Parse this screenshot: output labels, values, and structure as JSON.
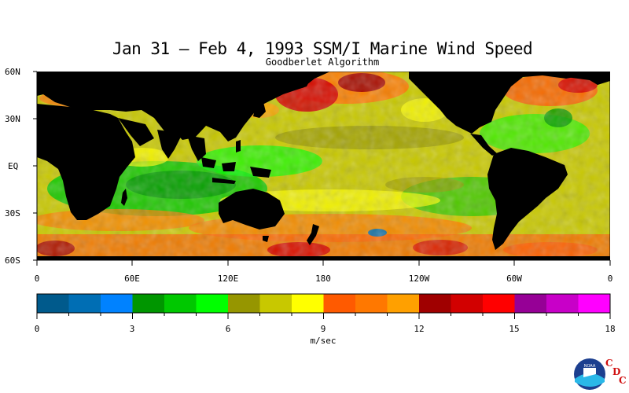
{
  "title": "Jan 31 – Feb 4, 1993 SSM/I Marine Wind Speed",
  "subtitle": "Goodberlet Algorithm",
  "map": {
    "lat_labels": [
      "60N",
      "30N",
      "EQ",
      "30S",
      "60S"
    ],
    "lon_labels": [
      "0",
      "60E",
      "120E",
      "180",
      "120W",
      "60W",
      "0"
    ],
    "land_color": "#000000"
  },
  "colorbar": {
    "colors": [
      "#005a8c",
      "#006eb4",
      "#0082ff",
      "#009600",
      "#00c800",
      "#00ff00",
      "#969600",
      "#c8c800",
      "#ffff00",
      "#ff5a00",
      "#ff7800",
      "#ffa000",
      "#a00000",
      "#d20000",
      "#ff0000",
      "#960096",
      "#c800c8",
      "#ff00ff"
    ],
    "tick_labels": [
      "0",
      "3",
      "6",
      "9",
      "12",
      "15",
      "18"
    ],
    "unit": "m/sec",
    "range": [
      0,
      18
    ]
  },
  "logo": {
    "noaa_text": "NOAA",
    "letters": [
      "C",
      "D",
      "C"
    ]
  }
}
